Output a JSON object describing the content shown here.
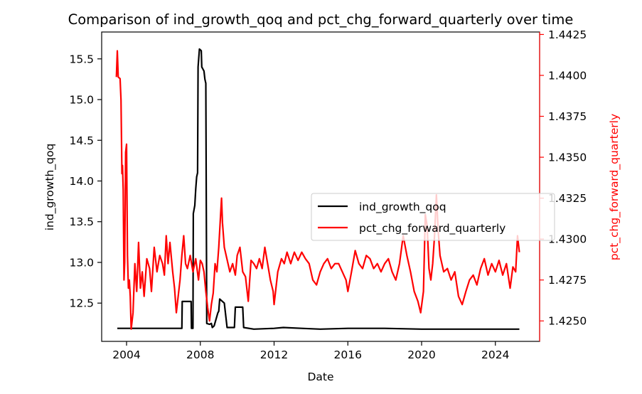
{
  "chart_data": {
    "type": "line",
    "title": "Comparison of ind_growth_qoq and pct_chg_forward_quarterly over time",
    "xlabel": "Date",
    "ylabel_left": "ind_growth_qoq",
    "ylabel_right": "pct_chg_forward_quarterly",
    "x_range": [
      2002.65,
      2026.4
    ],
    "x_ticks": [
      2004,
      2008,
      2012,
      2016,
      2020,
      2024
    ],
    "ylim_left": [
      12.03,
      15.83
    ],
    "yticks_left": [
      12.5,
      13.0,
      13.5,
      14.0,
      14.5,
      15.0,
      15.5
    ],
    "ylim_right": [
      1.42375,
      1.44265
    ],
    "yticks_right": [
      1.425,
      1.4275,
      1.43,
      1.4325,
      1.435,
      1.4375,
      1.44,
      1.4425
    ],
    "grid": false,
    "legend_position": "center-right",
    "series": [
      {
        "name": "ind_growth_qoq",
        "axis": "left",
        "color": "#000000",
        "points": [
          [
            2003.5,
            12.19
          ],
          [
            2007.0,
            12.19
          ],
          [
            2007.02,
            12.52
          ],
          [
            2007.5,
            12.52
          ],
          [
            2007.52,
            12.19
          ],
          [
            2007.6,
            12.19
          ],
          [
            2007.62,
            13.6
          ],
          [
            2007.7,
            13.7
          ],
          [
            2007.75,
            13.9
          ],
          [
            2007.8,
            14.05
          ],
          [
            2007.85,
            14.1
          ],
          [
            2007.88,
            15.4
          ],
          [
            2007.95,
            15.62
          ],
          [
            2008.05,
            15.6
          ],
          [
            2008.08,
            15.4
          ],
          [
            2008.2,
            15.35
          ],
          [
            2008.25,
            15.25
          ],
          [
            2008.3,
            15.2
          ],
          [
            2008.35,
            12.25
          ],
          [
            2008.5,
            12.24
          ],
          [
            2008.6,
            12.25
          ],
          [
            2008.65,
            12.2
          ],
          [
            2008.75,
            12.22
          ],
          [
            2008.85,
            12.3
          ],
          [
            2008.95,
            12.38
          ],
          [
            2009.0,
            12.4
          ],
          [
            2009.05,
            12.55
          ],
          [
            2009.3,
            12.5
          ],
          [
            2009.45,
            12.2
          ],
          [
            2009.7,
            12.2
          ],
          [
            2009.85,
            12.2
          ],
          [
            2009.9,
            12.45
          ],
          [
            2010.3,
            12.45
          ],
          [
            2010.35,
            12.2
          ],
          [
            2010.9,
            12.18
          ],
          [
            2012.0,
            12.19
          ],
          [
            2012.5,
            12.2
          ],
          [
            2013.5,
            12.19
          ],
          [
            2014.5,
            12.18
          ],
          [
            2016.0,
            12.19
          ],
          [
            2017.0,
            12.19
          ],
          [
            2018.0,
            12.19
          ],
          [
            2020.0,
            12.18
          ],
          [
            2022.0,
            12.18
          ],
          [
            2025.3,
            12.18
          ]
        ]
      },
      {
        "name": "pct_chg_forward_quarterly",
        "axis": "right",
        "color": "#ff0000",
        "points": [
          [
            2003.45,
            1.4399
          ],
          [
            2003.5,
            1.4415
          ],
          [
            2003.55,
            1.4399
          ],
          [
            2003.65,
            1.4398
          ],
          [
            2003.7,
            1.4385
          ],
          [
            2003.75,
            1.434
          ],
          [
            2003.78,
            1.4345
          ],
          [
            2003.82,
            1.433
          ],
          [
            2003.86,
            1.4275
          ],
          [
            2003.9,
            1.4286
          ],
          [
            2003.95,
            1.4353
          ],
          [
            2004.0,
            1.4358
          ],
          [
            2004.05,
            1.429
          ],
          [
            2004.1,
            1.427
          ],
          [
            2004.15,
            1.4275
          ],
          [
            2004.2,
            1.4265
          ],
          [
            2004.25,
            1.4245
          ],
          [
            2004.35,
            1.4255
          ],
          [
            2004.45,
            1.4285
          ],
          [
            2004.55,
            1.4268
          ],
          [
            2004.65,
            1.4298
          ],
          [
            2004.75,
            1.427
          ],
          [
            2004.85,
            1.428
          ],
          [
            2004.95,
            1.4265
          ],
          [
            2005.1,
            1.4288
          ],
          [
            2005.25,
            1.4282
          ],
          [
            2005.35,
            1.4268
          ],
          [
            2005.5,
            1.4295
          ],
          [
            2005.65,
            1.428
          ],
          [
            2005.8,
            1.429
          ],
          [
            2005.95,
            1.4285
          ],
          [
            2006.05,
            1.4278
          ],
          [
            2006.15,
            1.4302
          ],
          [
            2006.25,
            1.4285
          ],
          [
            2006.35,
            1.4298
          ],
          [
            2006.5,
            1.428
          ],
          [
            2006.6,
            1.427
          ],
          [
            2006.7,
            1.4255
          ],
          [
            2006.8,
            1.4265
          ],
          [
            2006.9,
            1.4275
          ],
          [
            2007.0,
            1.429
          ],
          [
            2007.1,
            1.4302
          ],
          [
            2007.2,
            1.4285
          ],
          [
            2007.3,
            1.4282
          ],
          [
            2007.45,
            1.429
          ],
          [
            2007.6,
            1.428
          ],
          [
            2007.75,
            1.4288
          ],
          [
            2007.9,
            1.4275
          ],
          [
            2008.0,
            1.4287
          ],
          [
            2008.1,
            1.4285
          ],
          [
            2008.2,
            1.428
          ],
          [
            2008.3,
            1.4268
          ],
          [
            2008.4,
            1.4258
          ],
          [
            2008.5,
            1.425
          ],
          [
            2008.6,
            1.426
          ],
          [
            2008.7,
            1.4267
          ],
          [
            2008.8,
            1.4285
          ],
          [
            2008.9,
            1.428
          ],
          [
            2009.0,
            1.4295
          ],
          [
            2009.1,
            1.4315
          ],
          [
            2009.15,
            1.4325
          ],
          [
            2009.2,
            1.431
          ],
          [
            2009.3,
            1.4295
          ],
          [
            2009.4,
            1.429
          ],
          [
            2009.5,
            1.4285
          ],
          [
            2009.6,
            1.428
          ],
          [
            2009.75,
            1.4285
          ],
          [
            2009.9,
            1.4278
          ],
          [
            2010.0,
            1.429
          ],
          [
            2010.15,
            1.4295
          ],
          [
            2010.3,
            1.428
          ],
          [
            2010.45,
            1.4277
          ],
          [
            2010.6,
            1.4262
          ],
          [
            2010.75,
            1.4287
          ],
          [
            2010.9,
            1.4285
          ],
          [
            2011.05,
            1.4282
          ],
          [
            2011.2,
            1.4288
          ],
          [
            2011.35,
            1.4282
          ],
          [
            2011.5,
            1.4295
          ],
          [
            2011.65,
            1.4285
          ],
          [
            2011.8,
            1.4275
          ],
          [
            2011.95,
            1.4268
          ],
          [
            2012.0,
            1.426
          ],
          [
            2012.2,
            1.428
          ],
          [
            2012.4,
            1.4288
          ],
          [
            2012.55,
            1.4285
          ],
          [
            2012.7,
            1.4292
          ],
          [
            2012.9,
            1.4285
          ],
          [
            2013.1,
            1.4292
          ],
          [
            2013.3,
            1.4287
          ],
          [
            2013.5,
            1.4292
          ],
          [
            2013.7,
            1.4288
          ],
          [
            2013.9,
            1.4285
          ],
          [
            2014.1,
            1.4275
          ],
          [
            2014.3,
            1.4272
          ],
          [
            2014.5,
            1.428
          ],
          [
            2014.7,
            1.4285
          ],
          [
            2014.9,
            1.4288
          ],
          [
            2015.1,
            1.4282
          ],
          [
            2015.3,
            1.4285
          ],
          [
            2015.5,
            1.4285
          ],
          [
            2015.7,
            1.428
          ],
          [
            2015.9,
            1.4275
          ],
          [
            2016.0,
            1.4268
          ],
          [
            2016.2,
            1.428
          ],
          [
            2016.4,
            1.4293
          ],
          [
            2016.6,
            1.4285
          ],
          [
            2016.8,
            1.4282
          ],
          [
            2017.0,
            1.429
          ],
          [
            2017.2,
            1.4288
          ],
          [
            2017.4,
            1.4282
          ],
          [
            2017.6,
            1.4285
          ],
          [
            2017.8,
            1.428
          ],
          [
            2018.0,
            1.4285
          ],
          [
            2018.2,
            1.4288
          ],
          [
            2018.4,
            1.428
          ],
          [
            2018.6,
            1.4275
          ],
          [
            2018.8,
            1.4285
          ],
          [
            2019.0,
            1.4302
          ],
          [
            2019.2,
            1.429
          ],
          [
            2019.4,
            1.428
          ],
          [
            2019.6,
            1.4268
          ],
          [
            2019.8,
            1.4262
          ],
          [
            2019.95,
            1.4255
          ],
          [
            2020.1,
            1.4268
          ],
          [
            2020.2,
            1.4315
          ],
          [
            2020.3,
            1.4308
          ],
          [
            2020.4,
            1.4282
          ],
          [
            2020.5,
            1.4275
          ],
          [
            2020.6,
            1.4285
          ],
          [
            2020.7,
            1.4302
          ],
          [
            2020.8,
            1.4327
          ],
          [
            2020.9,
            1.4305
          ],
          [
            2021.0,
            1.429
          ],
          [
            2021.2,
            1.428
          ],
          [
            2021.4,
            1.4282
          ],
          [
            2021.6,
            1.4275
          ],
          [
            2021.8,
            1.428
          ],
          [
            2022.0,
            1.4265
          ],
          [
            2022.2,
            1.426
          ],
          [
            2022.4,
            1.4268
          ],
          [
            2022.6,
            1.4275
          ],
          [
            2022.8,
            1.4278
          ],
          [
            2023.0,
            1.4272
          ],
          [
            2023.2,
            1.4282
          ],
          [
            2023.4,
            1.4288
          ],
          [
            2023.6,
            1.4278
          ],
          [
            2023.8,
            1.4285
          ],
          [
            2024.0,
            1.428
          ],
          [
            2024.2,
            1.4287
          ],
          [
            2024.4,
            1.4278
          ],
          [
            2024.6,
            1.4285
          ],
          [
            2024.8,
            1.427
          ],
          [
            2024.95,
            1.4283
          ],
          [
            2025.1,
            1.428
          ],
          [
            2025.2,
            1.4302
          ],
          [
            2025.3,
            1.4292
          ]
        ]
      }
    ]
  }
}
